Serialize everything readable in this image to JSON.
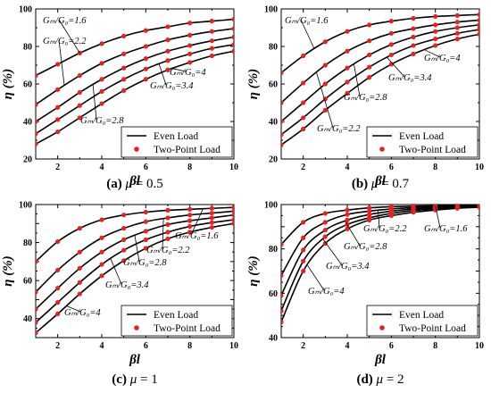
{
  "chart_data": [
    {
      "type": "line",
      "panel": "a",
      "caption_label": "(a)",
      "caption_mu": "0.5",
      "xlabel": "βl",
      "ylabel": "η (%)",
      "xlim": [
        1,
        10
      ],
      "ylim": [
        20,
        100
      ],
      "xticks": [
        2,
        4,
        6,
        8,
        10
      ],
      "yticks": [
        20,
        40,
        60,
        80,
        100
      ],
      "legend": {
        "line": "Even Load",
        "points": "Two-Point Load",
        "position": "bottom-right"
      },
      "x": [
        1,
        2,
        3,
        4,
        5,
        6,
        7,
        8,
        9,
        10
      ],
      "series": [
        {
          "name": "Gₘ/G₀=1.6",
          "values": [
            64.5,
            70.5,
            76.5,
            81.5,
            85.5,
            88.5,
            90.5,
            92.5,
            93.5,
            94.5
          ]
        },
        {
          "name": "Gₘ/G₀=2.2",
          "values": [
            49,
            57,
            64.5,
            71,
            76,
            80,
            83.5,
            86,
            88,
            89.5
          ]
        },
        {
          "name": "Gₘ/G₀=2.8",
          "values": [
            40,
            47.5,
            55.5,
            62.5,
            68.5,
            73.5,
            77.5,
            80.5,
            83,
            85
          ]
        },
        {
          "name": "Gₘ/G₀=3.4",
          "values": [
            33.5,
            41,
            48.5,
            56,
            62.5,
            68,
            72.5,
            76,
            79,
            81
          ]
        },
        {
          "name": "Gₘ/G₀=4",
          "values": [
            28,
            34.5,
            42,
            49.5,
            56.5,
            62.5,
            67.5,
            71.5,
            75,
            77.5
          ]
        }
      ],
      "annotations": [
        {
          "label": "Gₘ/G₀=1.6",
          "series": 0
        },
        {
          "label": "Gₘ/G₀=2.2",
          "series": 1
        },
        {
          "label": "Gₘ/G₀=4",
          "series": 4
        },
        {
          "label": "Gₘ/G₀=3.4",
          "series": 3
        },
        {
          "label": "Gₘ/G₀=2.8",
          "series": 2
        }
      ]
    },
    {
      "type": "line",
      "panel": "b",
      "caption_label": "(b)",
      "caption_mu": "0.7",
      "xlabel": "βl",
      "ylabel": "η (%)",
      "xlim": [
        1,
        10
      ],
      "ylim": [
        20,
        100
      ],
      "xticks": [
        2,
        4,
        6,
        8,
        10
      ],
      "yticks": [
        20,
        40,
        60,
        80,
        100
      ],
      "legend": {
        "line": "Even Load",
        "points": "Two-Point Load",
        "position": "bottom-right"
      },
      "x": [
        1,
        2,
        3,
        4,
        5,
        6,
        7,
        8,
        9,
        10
      ],
      "series": [
        {
          "name": "Gₘ/G₀=1.6",
          "values": [
            66,
            75,
            82.5,
            88,
            91.5,
            93.5,
            95,
            96,
            96.5,
            97
          ]
        },
        {
          "name": "Gₘ/G₀=2.2",
          "values": [
            50,
            60.5,
            70,
            77.5,
            83,
            87,
            89.5,
            91.5,
            93,
            94
          ]
        },
        {
          "name": "Gₘ/G₀=2.8",
          "values": [
            40,
            50,
            60,
            68.5,
            75.5,
            81,
            85,
            88,
            90,
            91.5
          ]
        },
        {
          "name": "Gₘ/G₀=3.4",
          "values": [
            33,
            42,
            52,
            61,
            69,
            75.5,
            80.5,
            84,
            87,
            89
          ]
        },
        {
          "name": "Gₘ/G₀=4",
          "values": [
            27.5,
            36,
            46,
            55,
            63.5,
            70.5,
            76,
            80.5,
            84,
            86.5
          ]
        }
      ],
      "annotations": [
        {
          "label": "Gₘ/G₀=1.6",
          "series": 0
        },
        {
          "label": "Gₘ/G₀=4",
          "series": 4
        },
        {
          "label": "Gₘ/G₀=3.4",
          "series": 3
        },
        {
          "label": "Gₘ/G₀=2.8",
          "series": 2
        },
        {
          "label": "Gₘ/G₀=2.2",
          "series": 1
        }
      ]
    },
    {
      "type": "line",
      "panel": "c",
      "caption_label": "(c)",
      "caption_mu": "1",
      "xlabel": "βl",
      "ylabel": "η (%)",
      "xlim": [
        1,
        10
      ],
      "ylim": [
        30,
        100
      ],
      "xticks": [
        2,
        4,
        6,
        8,
        10
      ],
      "yticks": [
        40,
        50,
        60,
        70,
        80,
        90,
        100
      ],
      "ytick_labels": [
        "40",
        "",
        "60",
        "",
        "80",
        "",
        "100"
      ],
      "legend": {
        "line": "Even Load",
        "points": "Two-Point Load",
        "position": "bottom-right"
      },
      "x": [
        1,
        2,
        3,
        4,
        5,
        6,
        7,
        8,
        9,
        10
      ],
      "series": [
        {
          "name": "Gₘ/G₀=1.6",
          "values": [
            70,
            80.5,
            87.5,
            92,
            94.5,
            96,
            97,
            97.5,
            98,
            98.5
          ]
        },
        {
          "name": "Gₘ/G₀=2.2",
          "values": [
            54,
            65.5,
            75,
            82.5,
            87.5,
            91,
            93,
            94.5,
            95.5,
            96.5
          ]
        },
        {
          "name": "Gₘ/G₀=2.8",
          "values": [
            45,
            56,
            66.5,
            75,
            81.5,
            86,
            89.5,
            91.5,
            93,
            94.5
          ]
        },
        {
          "name": "Gₘ/G₀=3.4",
          "values": [
            38,
            48.5,
            59,
            68.5,
            76,
            81.5,
            85.5,
            88.5,
            90.5,
            92
          ]
        },
        {
          "name": "Gₘ/G₀=4",
          "values": [
            32.5,
            42.5,
            53,
            62.5,
            70.5,
            77,
            82,
            85.5,
            88,
            90
          ]
        }
      ],
      "annotations": [
        {
          "label": "Gₘ/G₀=1.6",
          "series": 0
        },
        {
          "label": "Gₘ/G₀=2.2",
          "series": 1
        },
        {
          "label": "Gₘ/G₀=2.8",
          "series": 2
        },
        {
          "label": "Gₘ/G₀=3.4",
          "series": 3
        },
        {
          "label": "Gₘ/G₀=4",
          "series": 4
        }
      ]
    },
    {
      "type": "line",
      "panel": "d",
      "caption_label": "(d)",
      "caption_mu": "2",
      "xlabel": "βl",
      "ylabel": "η (%)",
      "xlim": [
        1,
        10
      ],
      "ylim": [
        40,
        100
      ],
      "xticks": [
        2,
        4,
        6,
        8,
        10
      ],
      "yticks": [
        40,
        50,
        60,
        70,
        80,
        90,
        100
      ],
      "ytick_labels": [
        "40",
        "",
        "60",
        "",
        "80",
        "",
        "100"
      ],
      "legend": {
        "line": "Even Load",
        "points": "Two-Point Load",
        "position": "bottom-right"
      },
      "x": [
        1,
        2,
        3,
        4,
        5,
        6,
        7,
        8,
        9,
        10
      ],
      "series": [
        {
          "name": "Gₘ/G₀=1.6",
          "values": [
            82,
            92,
            96,
            97.5,
            98.5,
            99,
            99.3,
            99.5,
            99.6,
            99.7
          ]
        },
        {
          "name": "Gₘ/G₀=2.2",
          "values": [
            68,
            85,
            92,
            95.5,
            97,
            98,
            98.6,
            99,
            99.3,
            99.5
          ]
        },
        {
          "name": "Gₘ/G₀=2.8",
          "values": [
            59,
            79.5,
            88.5,
            93,
            95.5,
            97,
            98,
            98.5,
            99,
            99.3
          ]
        },
        {
          "name": "Gₘ/G₀=3.4",
          "values": [
            52,
            74.5,
            85.5,
            91,
            94,
            96,
            97.3,
            98,
            98.6,
            99
          ]
        },
        {
          "name": "Gₘ/G₀=4",
          "values": [
            47,
            70,
            82.5,
            89,
            93,
            95,
            96.5,
            97.5,
            98.3,
            98.8
          ]
        }
      ],
      "annotations": [
        {
          "label": "Gₘ/G₀=2.2",
          "series": 1
        },
        {
          "label": "Gₘ/G₀=1.6",
          "series": 0
        },
        {
          "label": "Gₘ/G₀=2.8",
          "series": 2
        },
        {
          "label": "Gₘ/G₀=3.4",
          "series": 3
        },
        {
          "label": "Gₘ/G₀=4",
          "series": 4
        }
      ]
    }
  ]
}
